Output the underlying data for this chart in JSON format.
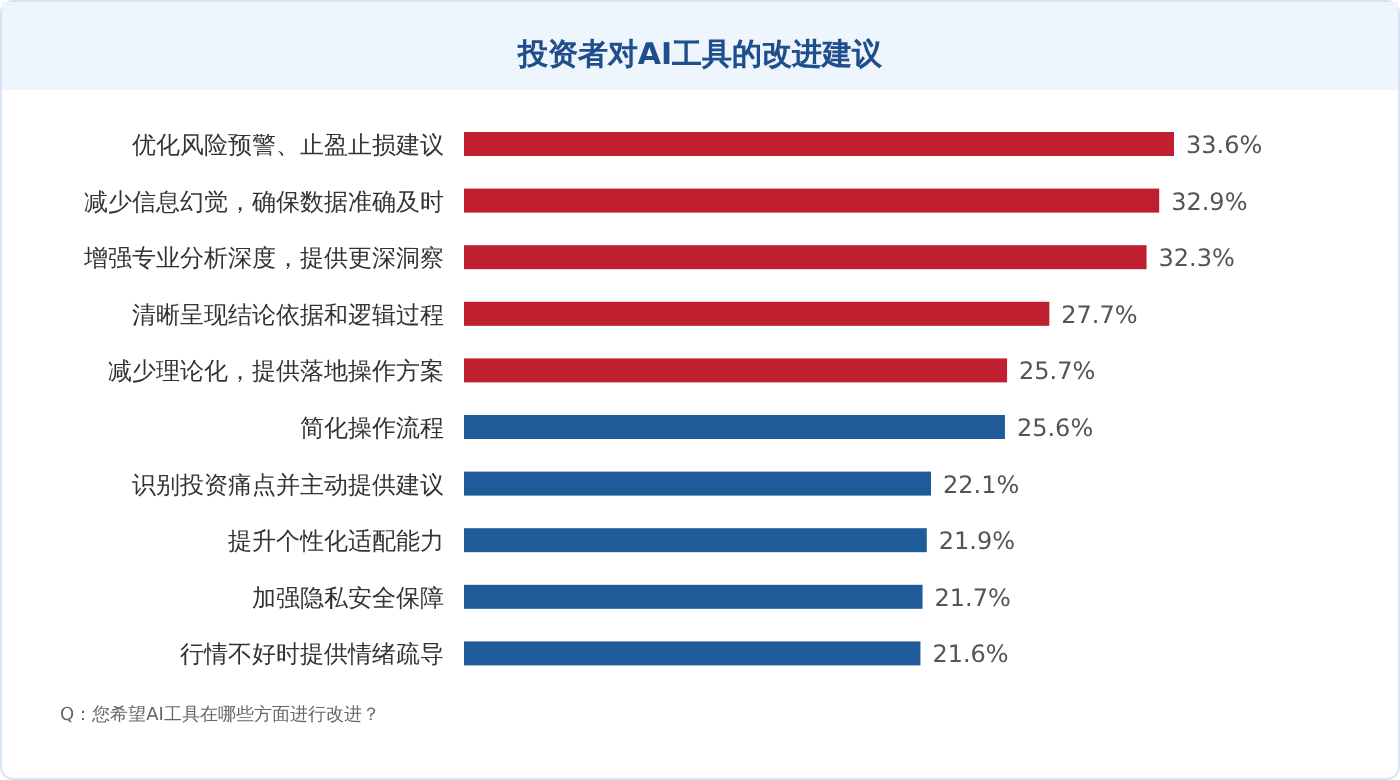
{
  "chart_data": {
    "type": "bar",
    "orientation": "horizontal",
    "title": "投资者对AI工具的改进建议",
    "categories": [
      "优化风险预警、止盈止损建议",
      "减少信息幻觉，确保数据准确及时",
      "增强专业分析深度，提供更深洞察",
      "清晰呈现结论依据和逻辑过程",
      "减少理论化，提供落地操作方案",
      "简化操作流程",
      "识别投资痛点并主动提供建议",
      "提升个性化适配能力",
      "加强隐私安全保障",
      "行情不好时提供情绪疏导"
    ],
    "values": [
      33.6,
      32.9,
      32.3,
      27.7,
      25.7,
      25.6,
      22.1,
      21.9,
      21.7,
      21.6
    ],
    "value_labels": [
      "33.6%",
      "32.9%",
      "32.3%",
      "27.7%",
      "25.7%",
      "25.6%",
      "22.1%",
      "21.9%",
      "21.7%",
      "21.6%"
    ],
    "colors": [
      "#c01f2f",
      "#c01f2f",
      "#c01f2f",
      "#c01f2f",
      "#c01f2f",
      "#1f5b98",
      "#1f5b98",
      "#1f5b98",
      "#1f5b98",
      "#1f5b98"
    ],
    "annotations": [
      "Q：您希望AI工具在哪些方面进行改进？"
    ]
  }
}
